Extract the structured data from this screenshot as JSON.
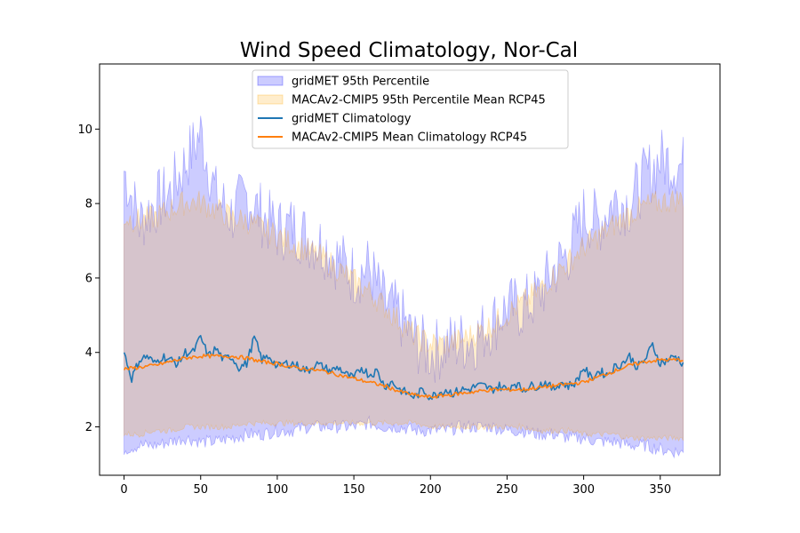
{
  "chart_data": {
    "type": "line",
    "title": "Wind Speed Climatology, Nor-Cal",
    "xlabel": "",
    "ylabel": "",
    "xlim": [
      -16,
      389
    ],
    "ylim": [
      0.7,
      11.75
    ],
    "x_ticks": [
      0,
      50,
      100,
      150,
      200,
      250,
      300,
      350
    ],
    "y_ticks": [
      2,
      4,
      6,
      8,
      10
    ],
    "grid": false,
    "legend_position": "top-center",
    "x_range": [
      0,
      365
    ],
    "series": [
      {
        "name": "gridMET 95th Percentile",
        "kind": "band",
        "color": "#0000ff",
        "alpha": 0.2,
        "x": [
          0,
          10,
          20,
          30,
          40,
          50,
          60,
          70,
          80,
          90,
          100,
          110,
          120,
          130,
          140,
          150,
          160,
          170,
          180,
          190,
          200,
          210,
          220,
          230,
          240,
          250,
          260,
          270,
          280,
          290,
          300,
          310,
          320,
          330,
          340,
          350,
          365
        ],
        "upper": [
          8.8,
          7.4,
          7.9,
          8.2,
          9.0,
          9.8,
          8.1,
          7.6,
          8.1,
          7.6,
          7.2,
          7.3,
          7.0,
          6.8,
          6.4,
          6.0,
          6.2,
          5.2,
          4.9,
          4.2,
          3.9,
          4.1,
          4.2,
          4.3,
          4.7,
          5.1,
          5.1,
          5.4,
          6.1,
          6.6,
          7.6,
          7.4,
          8.0,
          7.9,
          8.6,
          9.1,
          8.9
        ],
        "lower": [
          1.4,
          1.5,
          1.5,
          1.6,
          1.7,
          1.6,
          1.6,
          1.7,
          1.8,
          1.8,
          1.9,
          1.9,
          2.0,
          2.0,
          2.0,
          2.0,
          2.1,
          2.0,
          2.0,
          1.9,
          1.9,
          1.9,
          2.0,
          2.0,
          2.0,
          1.9,
          1.9,
          1.8,
          1.8,
          1.7,
          1.7,
          1.6,
          1.6,
          1.5,
          1.5,
          1.4,
          1.3
        ]
      },
      {
        "name": "MACAv2-CMIP5 95th Percentile Mean RCP45",
        "kind": "band",
        "color": "#ffa500",
        "alpha": 0.2,
        "x": [
          0,
          10,
          20,
          30,
          40,
          50,
          60,
          70,
          80,
          90,
          100,
          110,
          120,
          130,
          140,
          150,
          160,
          170,
          180,
          190,
          200,
          210,
          220,
          230,
          240,
          250,
          260,
          270,
          280,
          290,
          300,
          310,
          320,
          330,
          340,
          350,
          365
        ],
        "upper": [
          7.6,
          7.5,
          7.6,
          7.8,
          8.0,
          8.0,
          7.8,
          7.6,
          7.5,
          7.3,
          7.1,
          6.9,
          6.7,
          6.5,
          6.2,
          5.9,
          5.6,
          5.2,
          4.8,
          4.4,
          4.2,
          4.2,
          4.3,
          4.5,
          4.7,
          5.0,
          5.3,
          5.6,
          6.0,
          6.4,
          6.8,
          7.1,
          7.4,
          7.7,
          7.9,
          8.0,
          8.1
        ],
        "lower": [
          1.8,
          1.8,
          1.9,
          1.9,
          2.0,
          2.0,
          2.0,
          2.0,
          2.1,
          2.1,
          2.1,
          2.1,
          2.1,
          2.1,
          2.1,
          2.1,
          2.1,
          2.1,
          2.1,
          2.1,
          2.0,
          2.0,
          2.0,
          2.0,
          2.0,
          2.0,
          2.0,
          1.9,
          1.9,
          1.9,
          1.8,
          1.8,
          1.8,
          1.7,
          1.7,
          1.7,
          1.7
        ]
      },
      {
        "name": "gridMET Climatology",
        "kind": "line",
        "color": "#1f77b4",
        "x": [
          0,
          5,
          10,
          15,
          20,
          25,
          30,
          35,
          40,
          45,
          50,
          55,
          60,
          65,
          70,
          75,
          80,
          85,
          90,
          95,
          100,
          105,
          110,
          115,
          120,
          125,
          130,
          135,
          140,
          145,
          150,
          155,
          160,
          165,
          170,
          175,
          180,
          185,
          190,
          195,
          200,
          205,
          210,
          215,
          220,
          225,
          230,
          235,
          240,
          245,
          250,
          255,
          260,
          265,
          270,
          275,
          280,
          285,
          290,
          295,
          300,
          305,
          310,
          315,
          320,
          325,
          330,
          335,
          340,
          345,
          350,
          355,
          360,
          365
        ],
        "y": [
          4.0,
          3.3,
          3.8,
          3.9,
          3.7,
          3.9,
          3.8,
          3.7,
          4.0,
          4.0,
          4.4,
          3.9,
          4.1,
          3.8,
          3.9,
          3.6,
          3.7,
          4.4,
          3.8,
          3.9,
          3.6,
          3.7,
          3.7,
          3.6,
          3.5,
          3.7,
          3.6,
          3.5,
          3.6,
          3.4,
          3.3,
          3.6,
          3.4,
          3.5,
          3.1,
          3.2,
          3.0,
          2.9,
          2.8,
          3.0,
          2.8,
          2.9,
          3.0,
          2.9,
          3.0,
          3.0,
          3.1,
          3.1,
          3.0,
          3.1,
          3.0,
          3.2,
          3.0,
          3.1,
          3.1,
          3.2,
          3.0,
          3.2,
          3.1,
          3.2,
          3.6,
          3.3,
          3.5,
          3.4,
          3.6,
          3.7,
          3.9,
          3.6,
          3.8,
          4.2,
          3.7,
          3.8,
          3.9,
          3.7
        ]
      },
      {
        "name": "MACAv2-CMIP5 Mean Climatology RCP45",
        "kind": "line",
        "color": "#ff7f0e",
        "x": [
          0,
          10,
          20,
          30,
          40,
          50,
          60,
          70,
          80,
          90,
          100,
          110,
          120,
          130,
          140,
          150,
          160,
          170,
          180,
          190,
          200,
          210,
          220,
          230,
          240,
          250,
          260,
          270,
          280,
          290,
          300,
          310,
          320,
          330,
          340,
          350,
          360,
          365
        ],
        "y": [
          3.55,
          3.6,
          3.65,
          3.75,
          3.85,
          3.9,
          3.9,
          3.9,
          3.85,
          3.75,
          3.7,
          3.6,
          3.55,
          3.5,
          3.4,
          3.3,
          3.2,
          3.1,
          2.95,
          2.85,
          2.8,
          2.85,
          2.9,
          2.95,
          3.0,
          3.0,
          3.0,
          3.05,
          3.1,
          3.15,
          3.2,
          3.35,
          3.5,
          3.65,
          3.75,
          3.8,
          3.8,
          3.8
        ]
      }
    ]
  }
}
